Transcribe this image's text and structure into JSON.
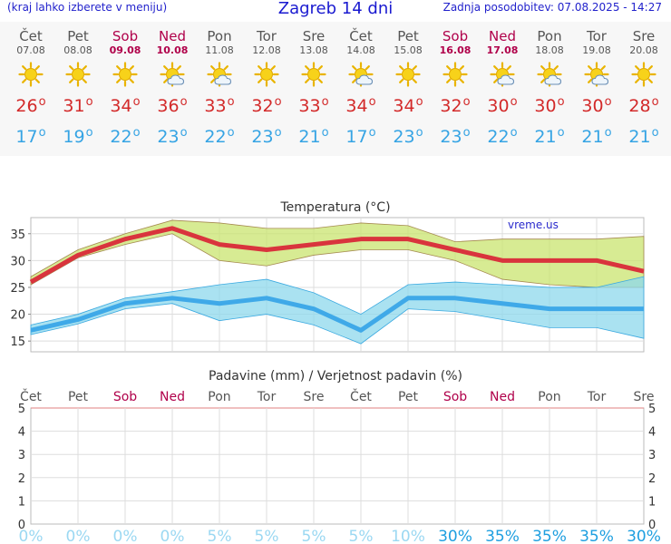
{
  "header": {
    "menu_note": "(kraj lahko izberete v meniju)",
    "title": "Zagreb 14 dni",
    "updated": "Zadnja posodobitev: 07.08.2025 - 14:27"
  },
  "forecast": [
    {
      "day": "Čet",
      "date": "07.08",
      "weekend": false,
      "icon": "sun-icon",
      "tmax": "26",
      "tmin": "17"
    },
    {
      "day": "Pet",
      "date": "08.08",
      "weekend": false,
      "icon": "sun-icon",
      "tmax": "31",
      "tmin": "19"
    },
    {
      "day": "Sob",
      "date": "09.08",
      "weekend": true,
      "icon": "sun-icon",
      "tmax": "34",
      "tmin": "22"
    },
    {
      "day": "Ned",
      "date": "10.08",
      "weekend": true,
      "icon": "sun-cloud-icon",
      "tmax": "36",
      "tmin": "23"
    },
    {
      "day": "Pon",
      "date": "11.08",
      "weekend": false,
      "icon": "sun-cloud-icon",
      "tmax": "33",
      "tmin": "22"
    },
    {
      "day": "Tor",
      "date": "12.08",
      "weekend": false,
      "icon": "sun-icon",
      "tmax": "32",
      "tmin": "23"
    },
    {
      "day": "Sre",
      "date": "13.08",
      "weekend": false,
      "icon": "sun-icon",
      "tmax": "33",
      "tmin": "21"
    },
    {
      "day": "Čet",
      "date": "14.08",
      "weekend": false,
      "icon": "sun-cloud-icon",
      "tmax": "34",
      "tmin": "17"
    },
    {
      "day": "Pet",
      "date": "15.08",
      "weekend": false,
      "icon": "sun-icon",
      "tmax": "34",
      "tmin": "23"
    },
    {
      "day": "Sob",
      "date": "16.08",
      "weekend": true,
      "icon": "sun-icon",
      "tmax": "32",
      "tmin": "23"
    },
    {
      "day": "Ned",
      "date": "17.08",
      "weekend": true,
      "icon": "sun-cloud-icon",
      "tmax": "30",
      "tmin": "22"
    },
    {
      "day": "Pon",
      "date": "18.08",
      "weekend": false,
      "icon": "sun-cloud-icon",
      "tmax": "30",
      "tmin": "21"
    },
    {
      "day": "Tor",
      "date": "19.08",
      "weekend": false,
      "icon": "sun-cloud-icon",
      "tmax": "30",
      "tmin": "21"
    },
    {
      "day": "Sre",
      "date": "20.08",
      "weekend": false,
      "icon": "sun-icon",
      "tmax": "28",
      "tmin": "21"
    }
  ],
  "chart_data": [
    {
      "type": "line",
      "title": "Temperatura (°C)",
      "watermark": "vreme.us",
      "ylim": [
        13,
        38
      ],
      "yticks": [
        15,
        20,
        25,
        30,
        35
      ],
      "grid": true,
      "series": [
        {
          "values": [
            26,
            31,
            34,
            36,
            33,
            32,
            33,
            34,
            34,
            32,
            30,
            30,
            30,
            28
          ],
          "color": "#d9343d"
        },
        {
          "values": [
            17,
            19,
            22,
            23,
            22,
            23,
            21,
            17,
            23,
            23,
            22,
            21,
            21,
            21
          ],
          "color": "#3fa9e8"
        }
      ],
      "bands": [
        {
          "lower": [
            25.5,
            30.5,
            33,
            35,
            30,
            29,
            31,
            32,
            32,
            30,
            26.5,
            25.5,
            25,
            25
          ],
          "upper": [
            27,
            32,
            35,
            37.5,
            37,
            36,
            36,
            37,
            36.5,
            33.5,
            34,
            34,
            34,
            34.5
          ],
          "color": "#c9e46f"
        },
        {
          "lower": [
            16.2,
            18.2,
            21,
            22,
            18.8,
            20,
            18,
            14.5,
            21,
            20.5,
            19,
            17.5,
            17.5,
            15.5
          ],
          "upper": [
            18,
            20,
            23,
            24.2,
            25.5,
            26.5,
            24,
            20,
            25.5,
            26,
            25.5,
            25,
            25,
            27
          ],
          "color": "#8ed8ec"
        }
      ]
    },
    {
      "type": "bar",
      "title": "Padavine (mm) / Verjetnost padavin (%)",
      "categories": [
        "Čet",
        "Pet",
        "Sob",
        "Ned",
        "Pon",
        "Tor",
        "Sre",
        "Čet",
        "Pet",
        "Sob",
        "Ned",
        "Pon",
        "Tor",
        "Sre"
      ],
      "weekend": [
        false,
        false,
        true,
        true,
        false,
        false,
        false,
        false,
        false,
        true,
        true,
        false,
        false,
        false
      ],
      "ylim": [
        0,
        5
      ],
      "yticks": [
        0,
        1,
        2,
        3,
        4,
        5
      ],
      "precipitation_mm": [
        0,
        0,
        0,
        0,
        0,
        0,
        0,
        0,
        0,
        0,
        0,
        0,
        0,
        0
      ],
      "probability_labels": [
        "0%",
        "0%",
        "0%",
        "0%",
        "5%",
        "5%",
        "5%",
        "5%",
        "10%",
        "30%",
        "35%",
        "35%",
        "35%",
        "30%"
      ]
    }
  ],
  "colors": {
    "weekend": "#b0004a",
    "weekday": "#555555",
    "tmax": "#d32a2a",
    "tmin": "#36a4e4",
    "prob_low": "#9bd8f2",
    "prob_high": "#1e9fe0"
  }
}
